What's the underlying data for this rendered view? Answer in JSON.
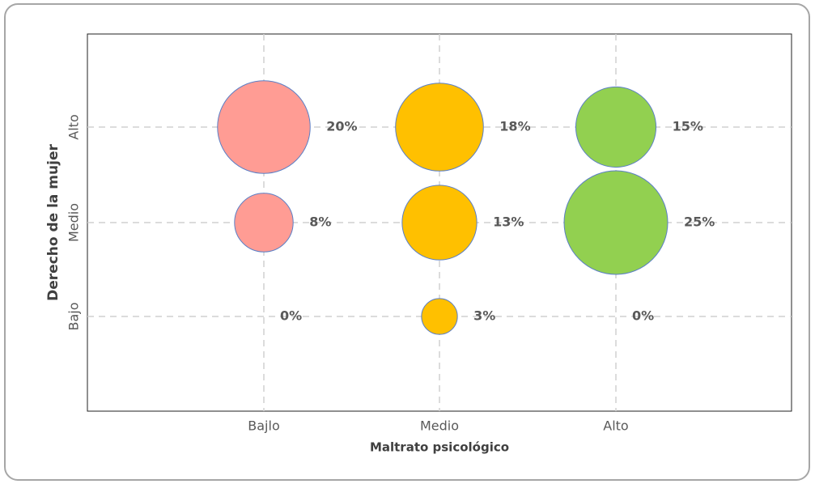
{
  "chart_data": {
    "type": "bubble",
    "x_label": "Maltrato psicológico",
    "y_label": "Derecho de la mujer",
    "x_categories": [
      "Bajlo",
      "Medio",
      "Alto"
    ],
    "y_categories": [
      "Bajo",
      "Medio",
      "Alto"
    ],
    "grid": true,
    "series": [
      {
        "color": "#ff9c94",
        "values": [
          0,
          8,
          20
        ],
        "value_labels": [
          "0%",
          "8%",
          "20%"
        ]
      },
      {
        "color": "#ffc000",
        "values": [
          3,
          13,
          18
        ],
        "value_labels": [
          "3%",
          "13%",
          "18%"
        ]
      },
      {
        "color": "#92d050",
        "values": [
          0,
          25,
          15
        ],
        "value_labels": [
          "0%",
          "25%",
          "15%"
        ]
      }
    ]
  }
}
